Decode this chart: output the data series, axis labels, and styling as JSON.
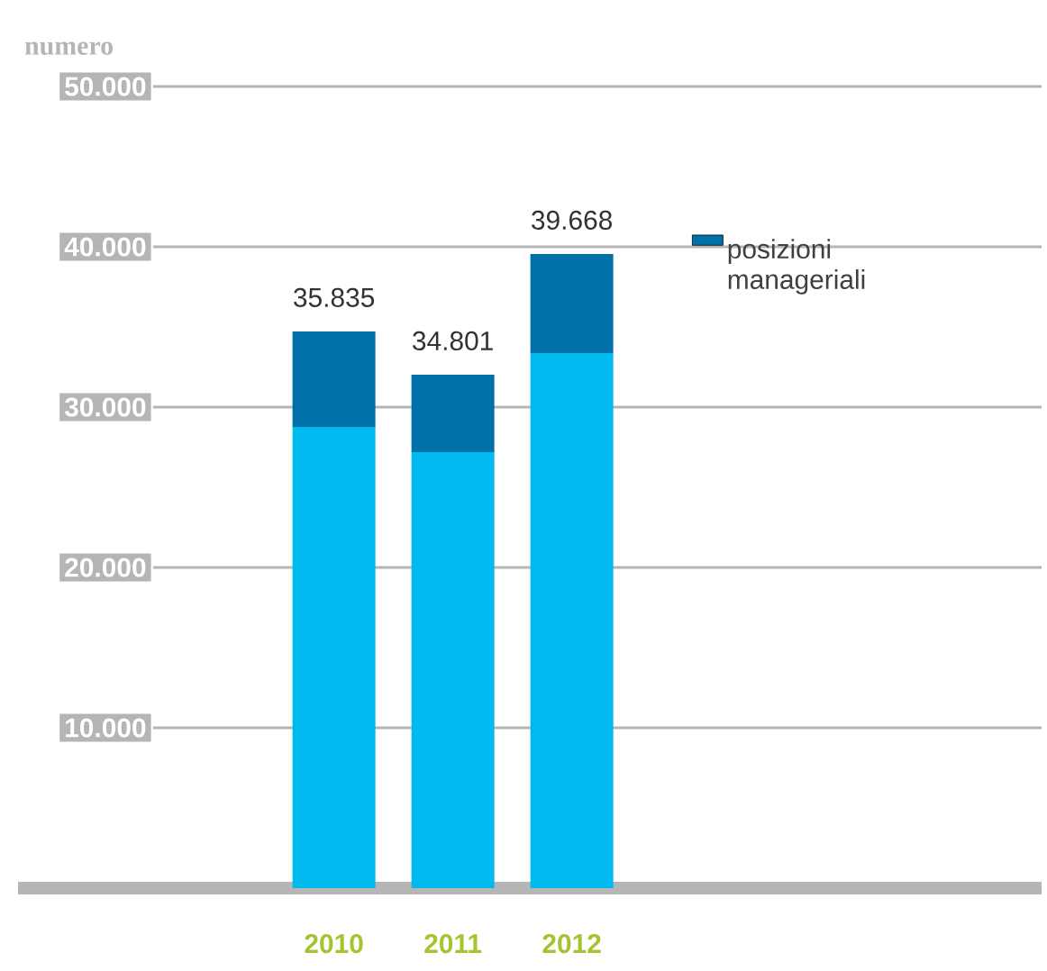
{
  "chart_data": {
    "type": "bar",
    "stacked": true,
    "ylabel": "numero",
    "categories": [
      "2010",
      "2011",
      "2012"
    ],
    "series": [
      {
        "color": "#00b9ef",
        "values": [
          28760,
          27190,
          33370
        ]
      },
      {
        "name": "posizioni manageriali",
        "color": "#0071a8",
        "values": [
          5960,
          4830,
          6180
        ]
      }
    ],
    "annotations": [
      {
        "text": "35.835",
        "x": "2010",
        "y": 34720
      },
      {
        "text": "34.801",
        "x": "2011",
        "y": 32020
      },
      {
        "text": "39.668",
        "x": "2012",
        "y": 39550
      }
    ],
    "ylim": [
      0,
      50000
    ],
    "yticks": [
      {
        "value": 10000,
        "label": "10.000"
      },
      {
        "value": 20000,
        "label": "20.000"
      },
      {
        "value": 30000,
        "label": "30.000"
      },
      {
        "value": 40000,
        "label": "40.000"
      },
      {
        "value": 50000,
        "label": "50.000"
      }
    ],
    "grid": "y",
    "legend": "right"
  }
}
